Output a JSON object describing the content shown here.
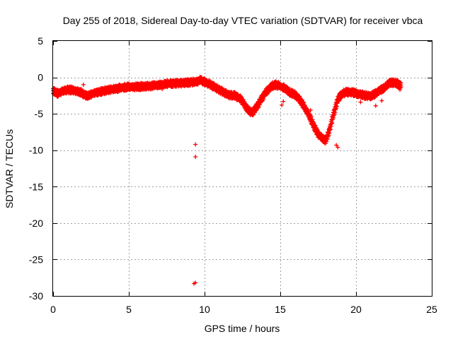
{
  "chart_data": {
    "type": "scatter",
    "title": "Day 255 of 2018, Sidereal Day-to-day VTEC variation (SDTVAR) for receiver vbca",
    "xlabel": "GPS time / hours",
    "ylabel": "SDTVAR / TECUs",
    "xlim": [
      0,
      25
    ],
    "ylim": [
      -30,
      5
    ],
    "xticks": [
      0,
      5,
      10,
      15,
      20,
      25
    ],
    "yticks": [
      5,
      0,
      -5,
      -10,
      -15,
      -20,
      -25,
      -30
    ],
    "xtick_labels": [
      "0",
      "5",
      "10",
      "15",
      "20",
      "25"
    ],
    "ytick_labels": [
      "5",
      "0",
      "-5",
      "-10",
      "-15",
      "-20",
      "-25",
      "-30"
    ],
    "grid": true,
    "marker": "plus",
    "color": "#ff0000",
    "series_trace": {
      "name": "vbca",
      "x": [
        0.0,
        0.3,
        0.6,
        1.0,
        1.4,
        1.8,
        2.0,
        2.3,
        2.6,
        3.0,
        3.5,
        4.0,
        4.5,
        5.0,
        5.5,
        6.0,
        6.5,
        7.0,
        7.5,
        8.0,
        8.5,
        9.0,
        9.4,
        9.7,
        10.0,
        10.4,
        10.8,
        11.2,
        11.6,
        12.0,
        12.4,
        12.8,
        13.0,
        13.2,
        13.5,
        13.8,
        14.1,
        14.4,
        14.7,
        15.0,
        15.3,
        15.6,
        16.0,
        16.4,
        16.8,
        17.2,
        17.5,
        17.8,
        18.0,
        18.2,
        18.5,
        18.8,
        19.1,
        19.4,
        19.8,
        20.2,
        20.6,
        21.0,
        21.4,
        21.8,
        22.2,
        22.5,
        22.8,
        23.0
      ],
      "y": [
        -1.8,
        -2.2,
        -1.9,
        -1.7,
        -1.8,
        -2.0,
        -2.3,
        -2.6,
        -2.2,
        -2.0,
        -1.8,
        -1.6,
        -1.4,
        -1.3,
        -1.3,
        -1.2,
        -1.2,
        -1.0,
        -0.9,
        -0.8,
        -0.8,
        -0.7,
        -0.6,
        -0.4,
        -0.6,
        -1.0,
        -1.5,
        -2.0,
        -2.4,
        -2.5,
        -3.0,
        -4.2,
        -4.8,
        -4.7,
        -3.9,
        -2.8,
        -1.9,
        -1.2,
        -1.0,
        -1.2,
        -1.5,
        -2.0,
        -2.4,
        -3.4,
        -4.8,
        -6.6,
        -7.8,
        -8.4,
        -8.6,
        -7.6,
        -5.2,
        -3.0,
        -2.2,
        -2.0,
        -2.1,
        -2.3,
        -2.5,
        -2.6,
        -2.0,
        -1.5,
        -0.8,
        -0.7,
        -0.9,
        -1.1
      ]
    },
    "spread": 0.7,
    "extra_points": [
      {
        "x": 2.0,
        "y": -1.0
      },
      {
        "x": 7.2,
        "y": -1.6
      },
      {
        "x": 9.3,
        "y": -0.9
      },
      {
        "x": 9.4,
        "y": -9.2
      },
      {
        "x": 9.4,
        "y": -10.9
      },
      {
        "x": 9.4,
        "y": -28.2
      },
      {
        "x": 9.3,
        "y": -28.3
      },
      {
        "x": 15.2,
        "y": -3.3
      },
      {
        "x": 15.1,
        "y": -3.8
      },
      {
        "x": 17.0,
        "y": -4.5
      },
      {
        "x": 18.7,
        "y": -9.3
      },
      {
        "x": 18.8,
        "y": -9.6
      },
      {
        "x": 20.3,
        "y": -3.4
      },
      {
        "x": 21.3,
        "y": -3.9
      },
      {
        "x": 21.7,
        "y": -3.2
      },
      {
        "x": 22.9,
        "y": -1.7
      }
    ]
  }
}
